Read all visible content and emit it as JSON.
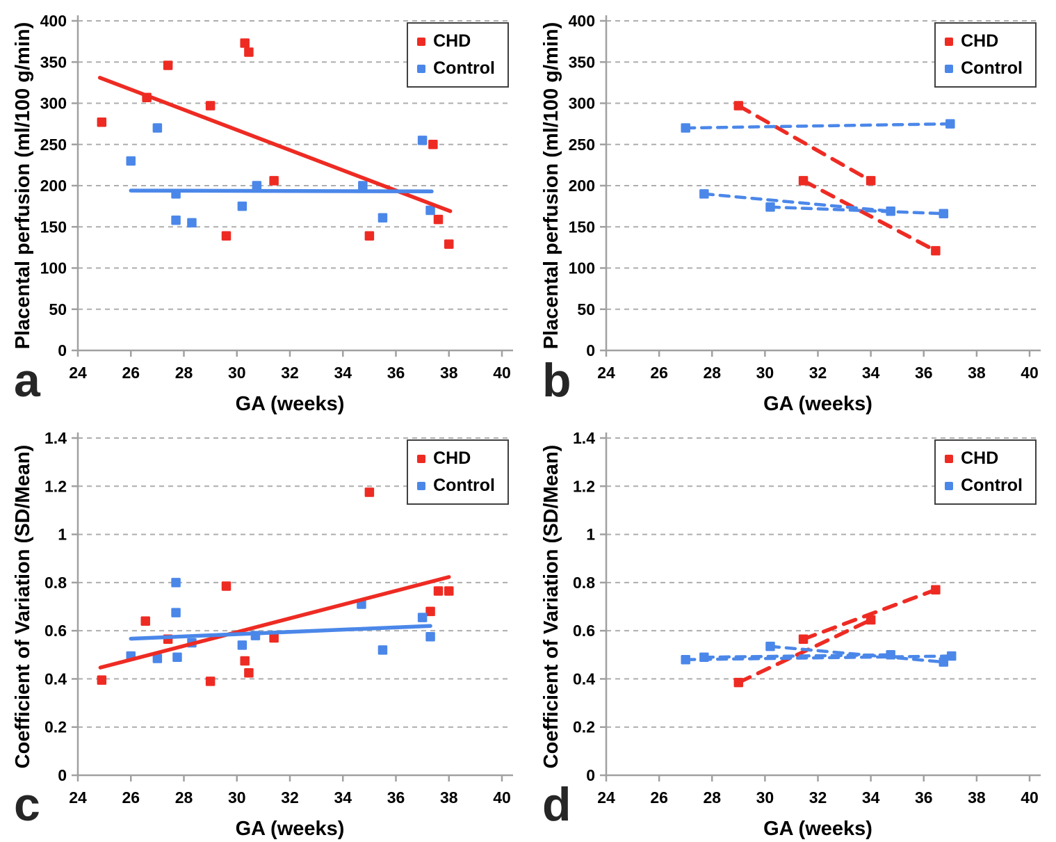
{
  "figure": {
    "legend": {
      "chd_label": "CHD",
      "control_label": "Control"
    },
    "colors": {
      "chd": "#ee2b23",
      "control": "#4b87e9",
      "grid": "#adadad",
      "axis": "#a0a0a0",
      "text": "#000000"
    }
  },
  "chart_data": [
    {
      "id": "a",
      "panel_label": "a",
      "type": "scatter",
      "xlabel": "GA (weeks)",
      "ylabel": "Placental perfusion (ml/100 g/min)",
      "xlim": [
        24,
        40
      ],
      "ylim": [
        0,
        400
      ],
      "xticks": [
        "24",
        "26",
        "28",
        "30",
        "32",
        "34",
        "36",
        "38",
        "40"
      ],
      "yticks": [
        "0",
        "50",
        "100",
        "150",
        "200",
        "250",
        "300",
        "350",
        "400"
      ],
      "grid": "horizontal-dashed",
      "legend_position": "top-right",
      "legend": [
        "CHD",
        "Control"
      ],
      "series": [
        {
          "name": "CHD",
          "color_key": "chd",
          "points": [
            [
              24.9,
              277
            ],
            [
              26.6,
              307
            ],
            [
              27.4,
              346
            ],
            [
              29.0,
              297
            ],
            [
              29.6,
              139
            ],
            [
              30.3,
              373
            ],
            [
              30.45,
              362
            ],
            [
              31.4,
              206
            ],
            [
              35.0,
              139
            ],
            [
              37.4,
              250
            ],
            [
              37.6,
              159
            ],
            [
              38.0,
              129
            ]
          ]
        },
        {
          "name": "Control",
          "color_key": "control",
          "points": [
            [
              26.0,
              230
            ],
            [
              27.0,
              270
            ],
            [
              27.7,
              190
            ],
            [
              27.7,
              158
            ],
            [
              28.3,
              155
            ],
            [
              30.2,
              175
            ],
            [
              30.75,
              200
            ],
            [
              34.75,
              200
            ],
            [
              35.5,
              161
            ],
            [
              37.0,
              255
            ],
            [
              37.3,
              170
            ]
          ]
        }
      ],
      "trend_lines": [
        {
          "series": "CHD",
          "style": "solid",
          "points": [
            [
              24.83,
              331
            ],
            [
              38.05,
              169
            ]
          ]
        },
        {
          "series": "Control",
          "style": "solid",
          "points": [
            [
              26.0,
              194
            ],
            [
              37.35,
              193
            ]
          ]
        }
      ]
    },
    {
      "id": "b",
      "panel_label": "b",
      "type": "scatter",
      "xlabel": "GA (weeks)",
      "ylabel": "Placental perfusion (ml/100 g/min)",
      "xlim": [
        24,
        40
      ],
      "ylim": [
        0,
        400
      ],
      "xticks": [
        "24",
        "26",
        "28",
        "30",
        "32",
        "34",
        "36",
        "38",
        "40"
      ],
      "yticks": [
        "0",
        "50",
        "100",
        "150",
        "200",
        "250",
        "300",
        "350",
        "400"
      ],
      "grid": "horizontal-dashed",
      "legend_position": "top-right",
      "legend": [
        "CHD",
        "Control"
      ],
      "series": [
        {
          "name": "CHD",
          "color_key": "chd",
          "points": [
            [
              29.0,
              297
            ],
            [
              31.45,
              206
            ],
            [
              34.0,
              206
            ],
            [
              36.45,
              121
            ]
          ]
        },
        {
          "name": "Control",
          "color_key": "control",
          "points": [
            [
              27.0,
              270
            ],
            [
              27.7,
              190
            ],
            [
              30.2,
              174
            ],
            [
              34.75,
              169
            ],
            [
              36.75,
              166
            ],
            [
              37.0,
              275
            ]
          ]
        }
      ],
      "trend_lines": [
        {
          "series": "CHD",
          "style": "dashed",
          "points": [
            [
              29.0,
              297
            ],
            [
              34.0,
              206
            ]
          ]
        },
        {
          "series": "CHD",
          "style": "dashed",
          "points": [
            [
              31.45,
              206
            ],
            [
              36.45,
              121
            ]
          ]
        },
        {
          "series": "Control",
          "style": "dashed",
          "points": [
            [
              27.0,
              270
            ],
            [
              37.0,
              275
            ]
          ]
        },
        {
          "series": "Control",
          "style": "dashed",
          "points": [
            [
              27.7,
              190
            ],
            [
              34.75,
              169
            ]
          ]
        },
        {
          "series": "Control",
          "style": "dashed",
          "points": [
            [
              30.2,
              174
            ],
            [
              36.75,
              166
            ]
          ]
        }
      ]
    },
    {
      "id": "c",
      "panel_label": "c",
      "type": "scatter",
      "xlabel": "GA (weeks)",
      "ylabel": "Coefficient of Variation (SD/Mean)",
      "xlim": [
        24,
        40
      ],
      "ylim": [
        0,
        1.4
      ],
      "xticks": [
        "24",
        "26",
        "28",
        "30",
        "32",
        "34",
        "36",
        "38",
        "40"
      ],
      "yticks": [
        "0",
        "0.2",
        "0.4",
        "0.6",
        "0.8",
        "1",
        "1.2",
        "1.4"
      ],
      "grid": "horizontal-dashed",
      "legend_position": "top-right",
      "legend": [
        "CHD",
        "Control"
      ],
      "series": [
        {
          "name": "CHD",
          "color_key": "chd",
          "points": [
            [
              24.9,
              0.395
            ],
            [
              26.55,
              0.64
            ],
            [
              27.4,
              0.565
            ],
            [
              29.0,
              0.39
            ],
            [
              29.6,
              0.785
            ],
            [
              30.3,
              0.475
            ],
            [
              30.45,
              0.425
            ],
            [
              31.4,
              0.57
            ],
            [
              35.0,
              1.175
            ],
            [
              37.3,
              0.68
            ],
            [
              37.6,
              0.765
            ],
            [
              38.0,
              0.765
            ]
          ]
        },
        {
          "name": "Control",
          "color_key": "control",
          "points": [
            [
              26.0,
              0.495
            ],
            [
              27.0,
              0.485
            ],
            [
              27.7,
              0.8
            ],
            [
              27.7,
              0.675
            ],
            [
              27.75,
              0.49
            ],
            [
              28.3,
              0.55
            ],
            [
              30.2,
              0.54
            ],
            [
              30.7,
              0.58
            ],
            [
              34.7,
              0.71
            ],
            [
              35.5,
              0.52
            ],
            [
              37.0,
              0.655
            ],
            [
              37.3,
              0.575
            ]
          ]
        }
      ],
      "trend_lines": [
        {
          "series": "CHD",
          "style": "solid",
          "points": [
            [
              24.85,
              0.447
            ],
            [
              38.0,
              0.823
            ]
          ]
        },
        {
          "series": "Control",
          "style": "solid",
          "points": [
            [
              26.0,
              0.567
            ],
            [
              37.3,
              0.62
            ]
          ]
        }
      ]
    },
    {
      "id": "d",
      "panel_label": "d",
      "type": "scatter",
      "xlabel": "GA (weeks)",
      "ylabel": "Coefficient of Variation (SD/Mean)",
      "xlim": [
        24,
        40
      ],
      "ylim": [
        0,
        1.4
      ],
      "xticks": [
        "24",
        "26",
        "28",
        "30",
        "32",
        "34",
        "36",
        "38",
        "40"
      ],
      "yticks": [
        "0",
        "0.2",
        "0.4",
        "0.6",
        "0.8",
        "1",
        "1.2",
        "1.4"
      ],
      "grid": "horizontal-dashed",
      "legend_position": "top-right",
      "legend": [
        "CHD",
        "Control"
      ],
      "series": [
        {
          "name": "CHD",
          "color_key": "chd",
          "points": [
            [
              29.0,
              0.385
            ],
            [
              31.45,
              0.565
            ],
            [
              34.0,
              0.645
            ],
            [
              36.45,
              0.77
            ]
          ]
        },
        {
          "name": "Control",
          "color_key": "control",
          "points": [
            [
              27.0,
              0.48
            ],
            [
              27.7,
              0.49
            ],
            [
              30.2,
              0.535
            ],
            [
              34.75,
              0.5
            ],
            [
              36.75,
              0.47
            ],
            [
              37.05,
              0.495
            ]
          ]
        }
      ],
      "trend_lines": [
        {
          "series": "CHD",
          "style": "dashed",
          "points": [
            [
              29.0,
              0.385
            ],
            [
              34.0,
              0.645
            ]
          ]
        },
        {
          "series": "CHD",
          "style": "dashed",
          "points": [
            [
              31.45,
              0.565
            ],
            [
              36.45,
              0.77
            ]
          ]
        },
        {
          "series": "Control",
          "style": "dashed",
          "points": [
            [
              27.0,
              0.48
            ],
            [
              37.05,
              0.495
            ]
          ]
        },
        {
          "series": "Control",
          "style": "dashed",
          "points": [
            [
              27.7,
              0.49
            ],
            [
              34.75,
              0.5
            ]
          ]
        },
        {
          "series": "Control",
          "style": "dashed",
          "points": [
            [
              30.2,
              0.535
            ],
            [
              36.75,
              0.47
            ]
          ]
        }
      ]
    }
  ]
}
